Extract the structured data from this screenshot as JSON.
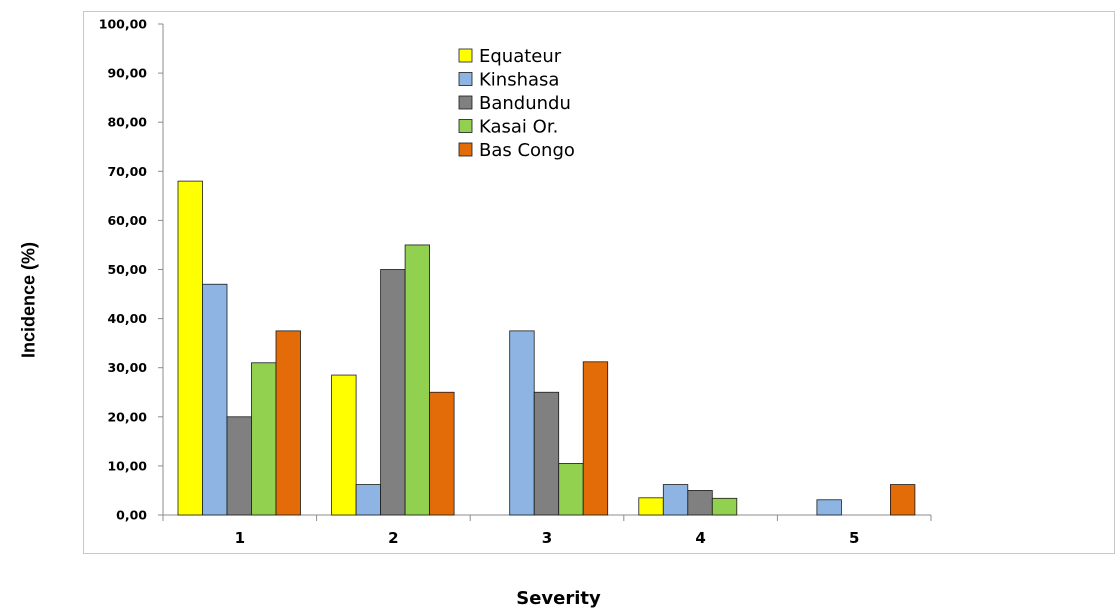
{
  "chart_data": {
    "type": "bar",
    "title": "",
    "xlabel": "Severity",
    "ylabel": "Incidence (%)",
    "categories": [
      "1",
      "2",
      "3",
      "4",
      "5"
    ],
    "ylim": [
      0,
      100
    ],
    "yticks": [
      "0,00",
      "10,00",
      "20,00",
      "30,00",
      "40,00",
      "50,00",
      "60,00",
      "70,00",
      "80,00",
      "90,00",
      "100,00"
    ],
    "grid": false,
    "legend_position": "top-center",
    "series": [
      {
        "name": "Equateur",
        "color": "#FFFF00",
        "values": [
          68.0,
          28.5,
          0,
          3.5,
          0
        ]
      },
      {
        "name": "Kinshasa",
        "color": "#8DB4E2",
        "values": [
          47.0,
          6.2,
          37.5,
          6.2,
          3.1
        ]
      },
      {
        "name": "Bandundu",
        "color": "#808080",
        "values": [
          20.0,
          50.0,
          25.0,
          5.0,
          0
        ]
      },
      {
        "name": "Kasai Or.",
        "color": "#92D050",
        "values": [
          31.0,
          55.0,
          10.5,
          3.4,
          0
        ]
      },
      {
        "name": "Bas Congo",
        "color": "#E36C09",
        "values": [
          37.5,
          25.0,
          31.2,
          0,
          6.2
        ]
      }
    ]
  }
}
